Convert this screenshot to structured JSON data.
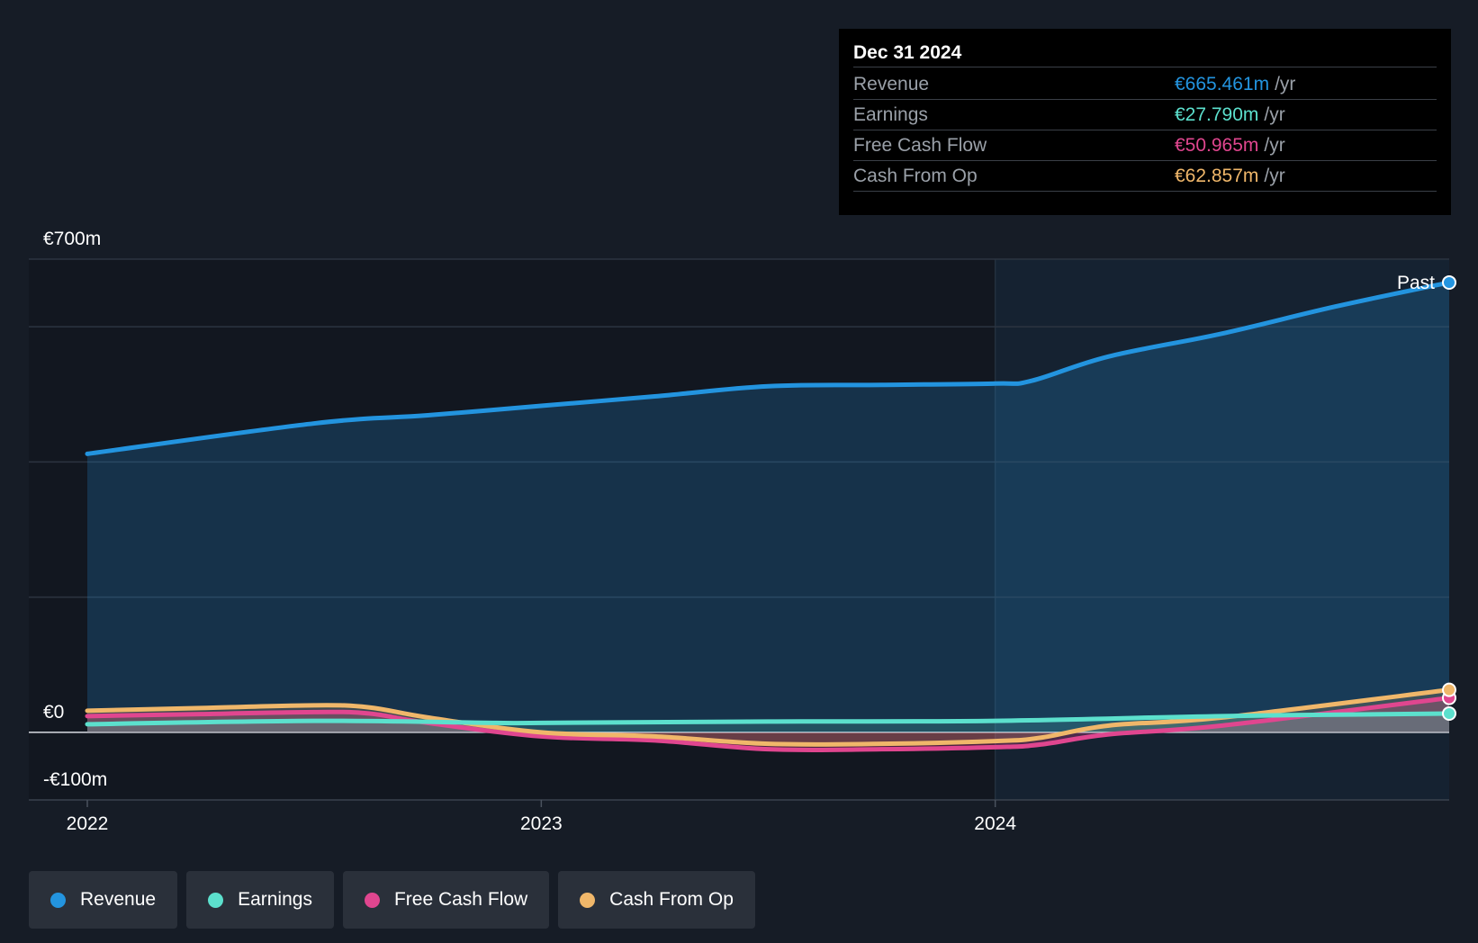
{
  "tooltip": {
    "date": "Dec 31 2024",
    "rows": [
      {
        "label": "Revenue",
        "value": "€665.461m",
        "unit": "/yr",
        "color": "#2394df"
      },
      {
        "label": "Earnings",
        "value": "€27.790m",
        "unit": "/yr",
        "color": "#5ce0cd"
      },
      {
        "label": "Free Cash Flow",
        "value": "€50.965m",
        "unit": "/yr",
        "color": "#e0468f"
      },
      {
        "label": "Cash From Op",
        "value": "€62.857m",
        "unit": "/yr",
        "color": "#f0b76a"
      }
    ]
  },
  "legend": [
    {
      "label": "Revenue",
      "color": "#2394df"
    },
    {
      "label": "Earnings",
      "color": "#5ce0cd"
    },
    {
      "label": "Free Cash Flow",
      "color": "#e0468f"
    },
    {
      "label": "Cash From Op",
      "color": "#f0b76a"
    }
  ],
  "chart_data": {
    "type": "line",
    "y_tick_labels": [
      "€700m",
      "€0",
      "-€100m"
    ],
    "x_tick_labels": [
      "2022",
      "2023",
      "2024"
    ],
    "ylim": [
      -100,
      700
    ],
    "xlim": [
      2022.0,
      2025.0
    ],
    "past_label": "Past",
    "past_region_start": 2024.0,
    "grid": true,
    "series": [
      {
        "name": "Revenue",
        "color": "#2394df",
        "x": [
          2022.0,
          2022.5,
          2022.75,
          2023.0,
          2023.25,
          2023.5,
          2023.75,
          2024.0,
          2024.08,
          2024.25,
          2024.5,
          2024.75,
          2025.0
        ],
        "y": [
          412,
          457,
          469,
          483,
          497,
          512,
          514,
          516,
          520,
          556,
          590,
          630,
          665.461
        ]
      },
      {
        "name": "Earnings",
        "color": "#5ce0cd",
        "x": [
          2022.0,
          2022.5,
          2022.9,
          2023.0,
          2023.5,
          2024.0,
          2024.5,
          2025.0
        ],
        "y": [
          12,
          17,
          14,
          14,
          16,
          17,
          24,
          27.79
        ]
      },
      {
        "name": "Free Cash Flow",
        "color": "#e0468f",
        "x": [
          2022.0,
          2022.25,
          2022.5,
          2022.62,
          2022.75,
          2023.0,
          2023.25,
          2023.5,
          2023.75,
          2024.0,
          2024.1,
          2024.25,
          2024.5,
          2025.0
        ],
        "y": [
          24,
          27,
          30,
          28,
          14,
          -6,
          -12,
          -25,
          -25,
          -22,
          -18,
          -3,
          10,
          50.965
        ]
      },
      {
        "name": "Cash From Op",
        "color": "#f0b76a",
        "x": [
          2022.0,
          2022.25,
          2022.5,
          2022.62,
          2022.75,
          2023.0,
          2023.25,
          2023.5,
          2023.75,
          2024.0,
          2024.1,
          2024.25,
          2024.5,
          2025.0
        ],
        "y": [
          32,
          36,
          40,
          37,
          22,
          0,
          -6,
          -17,
          -17,
          -13,
          -8,
          10,
          22,
          62.857
        ]
      }
    ]
  }
}
